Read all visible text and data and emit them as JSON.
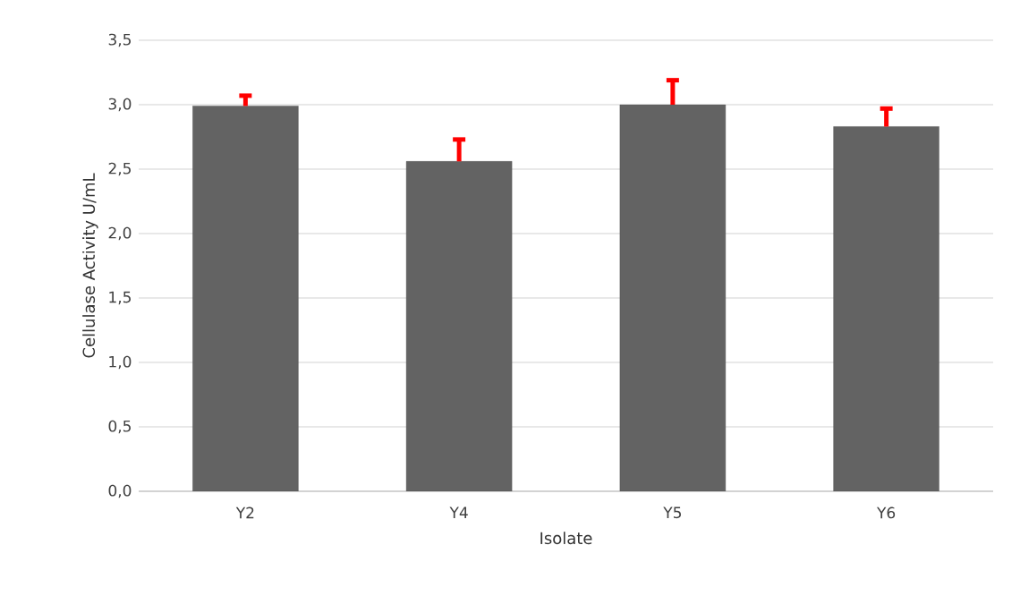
{
  "chart_data": {
    "type": "bar",
    "xlabel": "Isolate",
    "ylabel": "Cellulase Activity U/mL",
    "categories": [
      "Y2",
      "Y4",
      "Y5",
      "Y6"
    ],
    "values": [
      2.99,
      2.56,
      3.0,
      2.83
    ],
    "errors": [
      [
        2.99,
        3.07
      ],
      [
        2.56,
        2.73
      ],
      [
        3.0,
        3.19
      ],
      [
        2.83,
        2.97
      ]
    ],
    "color": "#636363",
    "ylim": [
      0,
      3.5
    ],
    "yticks": [
      {
        "value": 0,
        "label": "0,0"
      },
      {
        "value": 0.5,
        "label": "0,5"
      },
      {
        "value": 1,
        "label": "1,0"
      },
      {
        "value": 1.5,
        "label": "1,5"
      },
      {
        "value": 2,
        "label": "2,0"
      },
      {
        "value": 2.5,
        "label": "2,5"
      },
      {
        "value": 3,
        "label": "3,0"
      },
      {
        "value": 3.5,
        "label": "3,5"
      }
    ],
    "grid": "y"
  }
}
